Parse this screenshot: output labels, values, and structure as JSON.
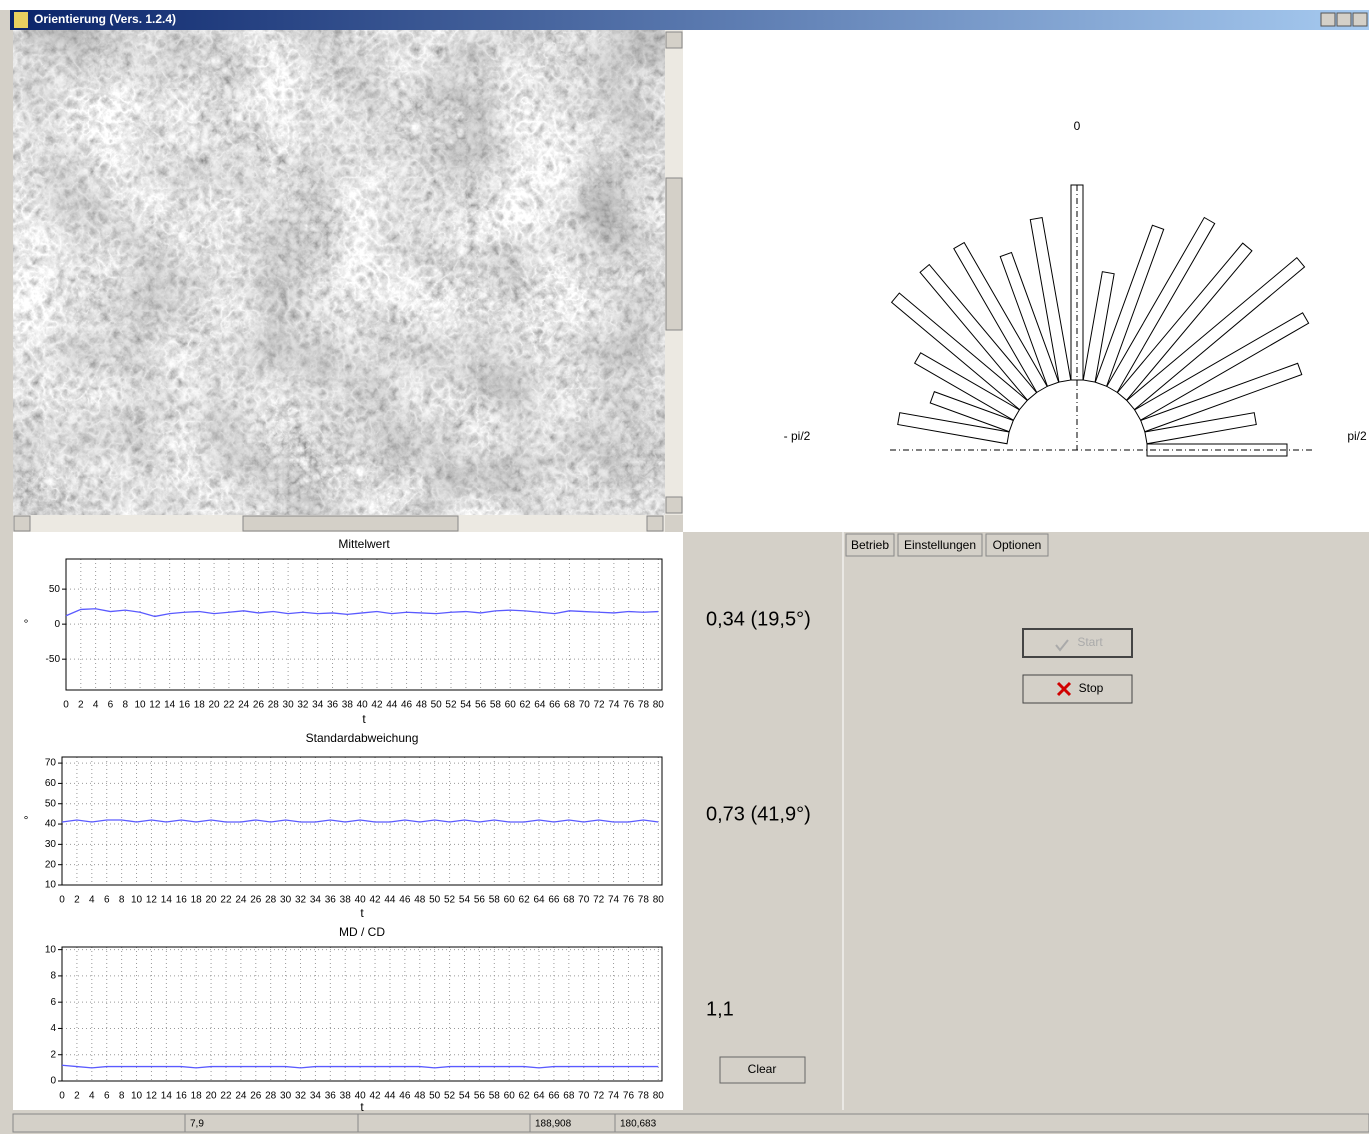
{
  "window": {
    "title": "Orientierung (Vers. 1.2.4)"
  },
  "chart_data": [
    {
      "type": "polar_bar",
      "color": "#000000",
      "x": [
        -80,
        -70,
        -60,
        -50,
        -40,
        -30,
        -20,
        -10,
        0,
        10,
        20,
        30,
        40,
        50,
        60,
        70,
        80,
        90
      ],
      "values": [
        111,
        84,
        114,
        167,
        167,
        166,
        138,
        165,
        195,
        110,
        167,
        195,
        195,
        222,
        194,
        167,
        111,
        140
      ],
      "xticks": [
        {
          "value": -90,
          "label": "- pi/2"
        },
        0,
        {
          "value": 90,
          "label": "pi/2"
        }
      ]
    },
    {
      "type": "line",
      "title": "Mittelwert",
      "xlabel": "t",
      "ylabel": "°",
      "color": "#5a5aff",
      "grid": true,
      "x": [
        0,
        2,
        4,
        6,
        8,
        10,
        12,
        14,
        16,
        18,
        20,
        22,
        24,
        26,
        28,
        30,
        32,
        34,
        36,
        38,
        40,
        42,
        44,
        46,
        48,
        50,
        52,
        54,
        56,
        58,
        60,
        62,
        64,
        66,
        68,
        70,
        72,
        74,
        76,
        78,
        80
      ],
      "values": [
        12,
        21,
        22,
        18,
        20,
        17,
        11,
        15,
        17,
        18,
        15,
        17,
        19,
        16,
        18,
        15,
        17,
        15,
        16,
        14,
        16,
        18,
        15,
        17,
        16,
        15,
        17,
        18,
        16,
        19,
        20,
        19,
        17,
        15,
        19,
        18,
        17,
        16,
        18,
        17,
        18
      ],
      "xlim": [
        0,
        80.5
      ],
      "ylim": [
        -94,
        93
      ],
      "xticks": [
        0,
        2,
        4,
        6,
        8,
        10,
        12,
        14,
        16,
        18,
        20,
        22,
        24,
        26,
        28,
        30,
        32,
        34,
        36,
        38,
        40,
        42,
        44,
        46,
        48,
        50,
        52,
        54,
        56,
        58,
        60,
        62,
        64,
        66,
        68,
        70,
        72,
        74,
        76,
        78,
        80
      ],
      "yticks": [
        50,
        0,
        -50
      ]
    },
    {
      "type": "line",
      "title": "Standardabweichung",
      "xlabel": "t",
      "ylabel": "°",
      "color": "#5a5aff",
      "grid": true,
      "x": [
        0,
        2,
        4,
        6,
        8,
        10,
        12,
        14,
        16,
        18,
        20,
        22,
        24,
        26,
        28,
        30,
        32,
        34,
        36,
        38,
        40,
        42,
        44,
        46,
        48,
        50,
        52,
        54,
        56,
        58,
        60,
        62,
        64,
        66,
        68,
        70,
        72,
        74,
        76,
        78,
        80
      ],
      "values": [
        41,
        42,
        41,
        42,
        42,
        41,
        42,
        41,
        42,
        41,
        42,
        41,
        41,
        42,
        41,
        42,
        41,
        41,
        42,
        41,
        42,
        41,
        41,
        42,
        41,
        42,
        41,
        42,
        41,
        42,
        41,
        41,
        42,
        41,
        42,
        41,
        42,
        41,
        41,
        42,
        41
      ],
      "xlim": [
        0,
        80.5
      ],
      "ylim": [
        10,
        73
      ],
      "xticks": [
        0,
        2,
        4,
        6,
        8,
        10,
        12,
        14,
        16,
        18,
        20,
        22,
        24,
        26,
        28,
        30,
        32,
        34,
        36,
        38,
        40,
        42,
        44,
        46,
        48,
        50,
        52,
        54,
        56,
        58,
        60,
        62,
        64,
        66,
        68,
        70,
        72,
        74,
        76,
        78,
        80
      ],
      "yticks": [
        70,
        60,
        50,
        40,
        30,
        20,
        10
      ]
    },
    {
      "type": "line",
      "title": "MD / CD",
      "xlabel": "t",
      "color": "#5a5aff",
      "grid": true,
      "x": [
        0,
        2,
        4,
        6,
        8,
        10,
        12,
        14,
        16,
        18,
        20,
        22,
        24,
        26,
        28,
        30,
        32,
        34,
        36,
        38,
        40,
        42,
        44,
        46,
        48,
        50,
        52,
        54,
        56,
        58,
        60,
        62,
        64,
        66,
        68,
        70,
        72,
        74,
        76,
        78,
        80
      ],
      "values": [
        1.2,
        1.1,
        1.0,
        1.1,
        1.1,
        1.1,
        1.1,
        1.1,
        1.1,
        1.0,
        1.1,
        1.1,
        1.1,
        1.1,
        1.1,
        1.1,
        1.0,
        1.1,
        1.1,
        1.1,
        1.1,
        1.1,
        1.1,
        1.1,
        1.1,
        1.0,
        1.1,
        1.1,
        1.1,
        1.1,
        1.1,
        1.1,
        1.0,
        1.1,
        1.1,
        1.1,
        1.1,
        1.1,
        1.1,
        1.1,
        1.1
      ],
      "xlim": [
        0,
        80.5
      ],
      "ylim": [
        0,
        10.2
      ],
      "xticks": [
        0,
        2,
        4,
        6,
        8,
        10,
        12,
        14,
        16,
        18,
        20,
        22,
        24,
        26,
        28,
        30,
        32,
        34,
        36,
        38,
        40,
        42,
        44,
        46,
        48,
        50,
        52,
        54,
        56,
        58,
        60,
        62,
        64,
        66,
        68,
        70,
        72,
        74,
        76,
        78,
        80
      ],
      "yticks": [
        10,
        8,
        6,
        4,
        2,
        0
      ]
    }
  ],
  "results": [
    "0,34 (19,5°)",
    "0,73 (41,9°)",
    "1,1"
  ],
  "buttons": {
    "clear": "Clear",
    "start": "Start",
    "stop": "Stop"
  },
  "tabs": [
    "Betrieb",
    "Einstellungen",
    "Optionen"
  ],
  "status_bar": [
    "7,9",
    "188,908",
    "180,683"
  ]
}
